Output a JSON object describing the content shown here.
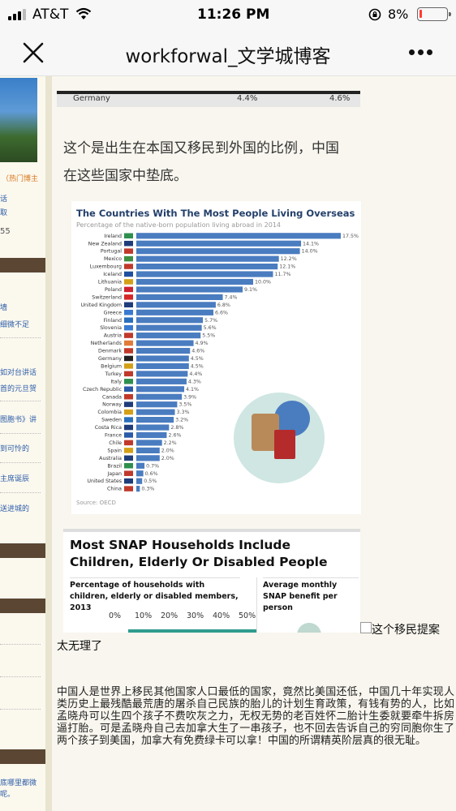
{
  "status_bar": {
    "carrier": "AT&T",
    "time": "11:26 PM",
    "battery": "8%",
    "battery_level": 0.08
  },
  "nav": {
    "title": "workforwal_文学城博客"
  },
  "sidebar": {
    "hot_blogger": "（热门博主",
    "links": [
      "话",
      "取",
      "55",
      "墙",
      "细微不足",
      "如对台讲话",
      "首的元旦贺",
      "图胞书》讲",
      "到可怜的",
      "主席诞辰",
      "送进城的",
      "底哪里都微",
      "呢。"
    ]
  },
  "article": {
    "snippet": {
      "country": "Germany",
      "v1": "4.4%",
      "v2": "4.6%"
    },
    "paragraph": "这个是出生在本国又移民到外国的比例，中国在这些国家中垫底。",
    "chart_title": "The Countries With The Most People Living Overseas",
    "chart_subtitle": "Percentage of the native-born population living abroad in 2014",
    "chart_source": "Source: OECD",
    "card2": {
      "title": "Most SNAP Households Include Children, Elderly Or Disabled People",
      "sub1": "Percentage of households with children, elderly or disabled members, 2013",
      "sub2": "Average monthly SNAP benefit per person",
      "axis": [
        "0%",
        "10%",
        "20%",
        "30%",
        "40%",
        "50%"
      ]
    },
    "caption": "这个移民提案",
    "caption2": "太无理了",
    "body": "中国人是世界上移民其他国家人口最低的国家，竟然比美国还低，中国几十年实现人类历史上最残酷最荒唐的屠杀自己民族的胎儿的计划生育政策，有钱有势的人，比如孟晓舟可以生四个孩子不费吹灰之力，无权无势的老百姓怀二胎计生委就要牵牛拆房逼打胎。可是孟晓舟自己去加拿大生了一串孩子，也不回去告诉自己的穷同胞你生了两个孩子到美国，加拿大有免费绿卡可以拿！中国的所谓精英阶层真的很无耻。"
  },
  "chart_data": {
    "type": "bar",
    "title": "The Countries With The Most People Living Overseas",
    "subtitle": "Percentage of the native-born population living abroad in 2014",
    "categories": [
      "Ireland",
      "New Zealand",
      "Portugal",
      "Mexico",
      "Luxembourg",
      "Iceland",
      "Lithuania",
      "Poland",
      "Switzerland",
      "United Kingdom",
      "Greece",
      "Finland",
      "Slovenia",
      "Austria",
      "Netherlands",
      "Denmark",
      "Germany",
      "Belgium",
      "Turkey",
      "Italy",
      "Czech Republic",
      "Canada",
      "Norway",
      "Colombia",
      "Sweden",
      "Costa Rica",
      "France",
      "Chile",
      "Spain",
      "Australia",
      "Brazil",
      "Japan",
      "United States",
      "China"
    ],
    "values": [
      17.5,
      14.1,
      14.0,
      12.2,
      12.1,
      11.7,
      10.0,
      9.1,
      7.4,
      6.8,
      6.6,
      5.7,
      5.6,
      5.5,
      4.9,
      4.6,
      4.5,
      4.5,
      4.4,
      4.3,
      4.1,
      3.9,
      3.5,
      3.3,
      3.2,
      2.8,
      2.6,
      2.2,
      2.0,
      2.0,
      0.7,
      0.6,
      0.5,
      0.3
    ],
    "xlim": [
      0,
      17.5
    ],
    "bar_color": "#4a7cc0",
    "source": "Source: OECD"
  }
}
